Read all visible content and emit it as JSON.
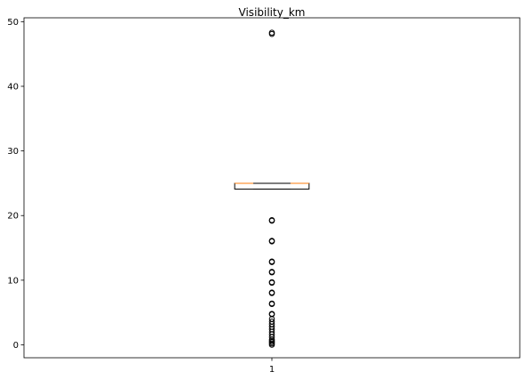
{
  "chart_data": {
    "type": "box",
    "title": "Visibility_km",
    "xlabel": "",
    "ylabel": "",
    "categories": [
      "1"
    ],
    "ylim": [
      -2.0,
      50.6
    ],
    "yticks": [
      0,
      10,
      20,
      30,
      40,
      50
    ],
    "boxes": [
      {
        "category": "1",
        "q1": 24.1,
        "median": 24.99,
        "q3": 24.99,
        "whisker_low": 24.1,
        "whisker_high": 24.99,
        "fliers": [
          48.3,
          48.1,
          19.3,
          19.2,
          16.1,
          16.0,
          12.9,
          12.8,
          11.3,
          11.2,
          9.7,
          9.6,
          8.1,
          8.0,
          6.4,
          6.3,
          4.8,
          4.7,
          4.0,
          3.6,
          3.2,
          2.8,
          2.4,
          2.0,
          1.6,
          1.2,
          0.8,
          0.6,
          0.4,
          0.2,
          0.0
        ]
      }
    ],
    "grid": false,
    "colors": {
      "box": "#000000",
      "median": "#ff7f0e",
      "flier": "#000000",
      "axes": "#000000"
    }
  }
}
